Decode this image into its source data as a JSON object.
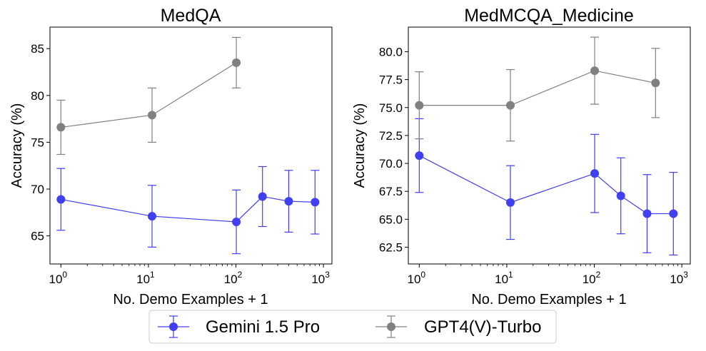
{
  "legend": {
    "items": [
      {
        "label": "Gemini 1.5 Pro",
        "color": "#4040f0"
      },
      {
        "label": "GPT4(V)-Turbo",
        "color": "#808080"
      }
    ]
  },
  "chart_data": [
    {
      "type": "line",
      "title": "MedQA",
      "xlabel": "No. Demo Examples + 1",
      "ylabel": "Accuracy (%)",
      "xscale": "log",
      "xlim": [
        0.75,
        1250
      ],
      "ylim": [
        62,
        87.3
      ],
      "xticks": [
        {
          "value": 1,
          "base": "10",
          "exp": "0"
        },
        {
          "value": 10,
          "base": "10",
          "exp": "1"
        },
        {
          "value": 100,
          "base": "10",
          "exp": "2"
        },
        {
          "value": 1000,
          "base": "10",
          "exp": "3"
        }
      ],
      "yticks": [
        {
          "value": 65,
          "label": "65"
        },
        {
          "value": 70,
          "label": "70"
        },
        {
          "value": 75,
          "label": "75"
        },
        {
          "value": 80,
          "label": "80"
        },
        {
          "value": 85,
          "label": "85"
        }
      ],
      "series": [
        {
          "name": "Gemini 1.5 Pro",
          "color": "#4040f0",
          "x": [
            1,
            11,
            101,
            201,
            401,
            801
          ],
          "values": [
            68.9,
            67.1,
            66.5,
            69.2,
            68.7,
            68.6
          ],
          "err": [
            3.3,
            3.3,
            3.4,
            3.2,
            3.3,
            3.4
          ]
        },
        {
          "name": "GPT4(V)-Turbo",
          "color": "#808080",
          "x": [
            1,
            11,
            101
          ],
          "values": [
            76.6,
            77.9,
            83.5
          ],
          "err": [
            2.9,
            2.9,
            2.7
          ]
        }
      ]
    },
    {
      "type": "line",
      "title": "MedMCQA_Medicine",
      "xlabel": "No. Demo Examples + 1",
      "ylabel": "Accuracy (%)",
      "xscale": "log",
      "xlim": [
        0.75,
        1250
      ],
      "ylim": [
        61.0,
        82.2
      ],
      "xticks": [
        {
          "value": 1,
          "base": "10",
          "exp": "0"
        },
        {
          "value": 10,
          "base": "10",
          "exp": "1"
        },
        {
          "value": 100,
          "base": "10",
          "exp": "2"
        },
        {
          "value": 1000,
          "base": "10",
          "exp": "3"
        }
      ],
      "yticks": [
        {
          "value": 62.5,
          "label": "62.5"
        },
        {
          "value": 65.0,
          "label": "65.0"
        },
        {
          "value": 67.5,
          "label": "67.5"
        },
        {
          "value": 70.0,
          "label": "70.0"
        },
        {
          "value": 72.5,
          "label": "72.5"
        },
        {
          "value": 75.0,
          "label": "75.0"
        },
        {
          "value": 77.5,
          "label": "77.5"
        },
        {
          "value": 80.0,
          "label": "80.0"
        }
      ],
      "series": [
        {
          "name": "Gemini 1.5 Pro",
          "color": "#4040f0",
          "x": [
            1,
            11,
            101,
            201,
            401,
            801
          ],
          "values": [
            70.7,
            66.5,
            69.1,
            67.1,
            65.5,
            65.5
          ],
          "err": [
            3.3,
            3.3,
            3.5,
            3.4,
            3.5,
            3.7
          ]
        },
        {
          "name": "GPT4(V)-Turbo",
          "color": "#808080",
          "x": [
            1,
            11,
            101,
            501
          ],
          "values": [
            75.2,
            75.2,
            78.3,
            77.2
          ],
          "err": [
            3.0,
            3.2,
            3.0,
            3.1
          ]
        }
      ]
    }
  ]
}
